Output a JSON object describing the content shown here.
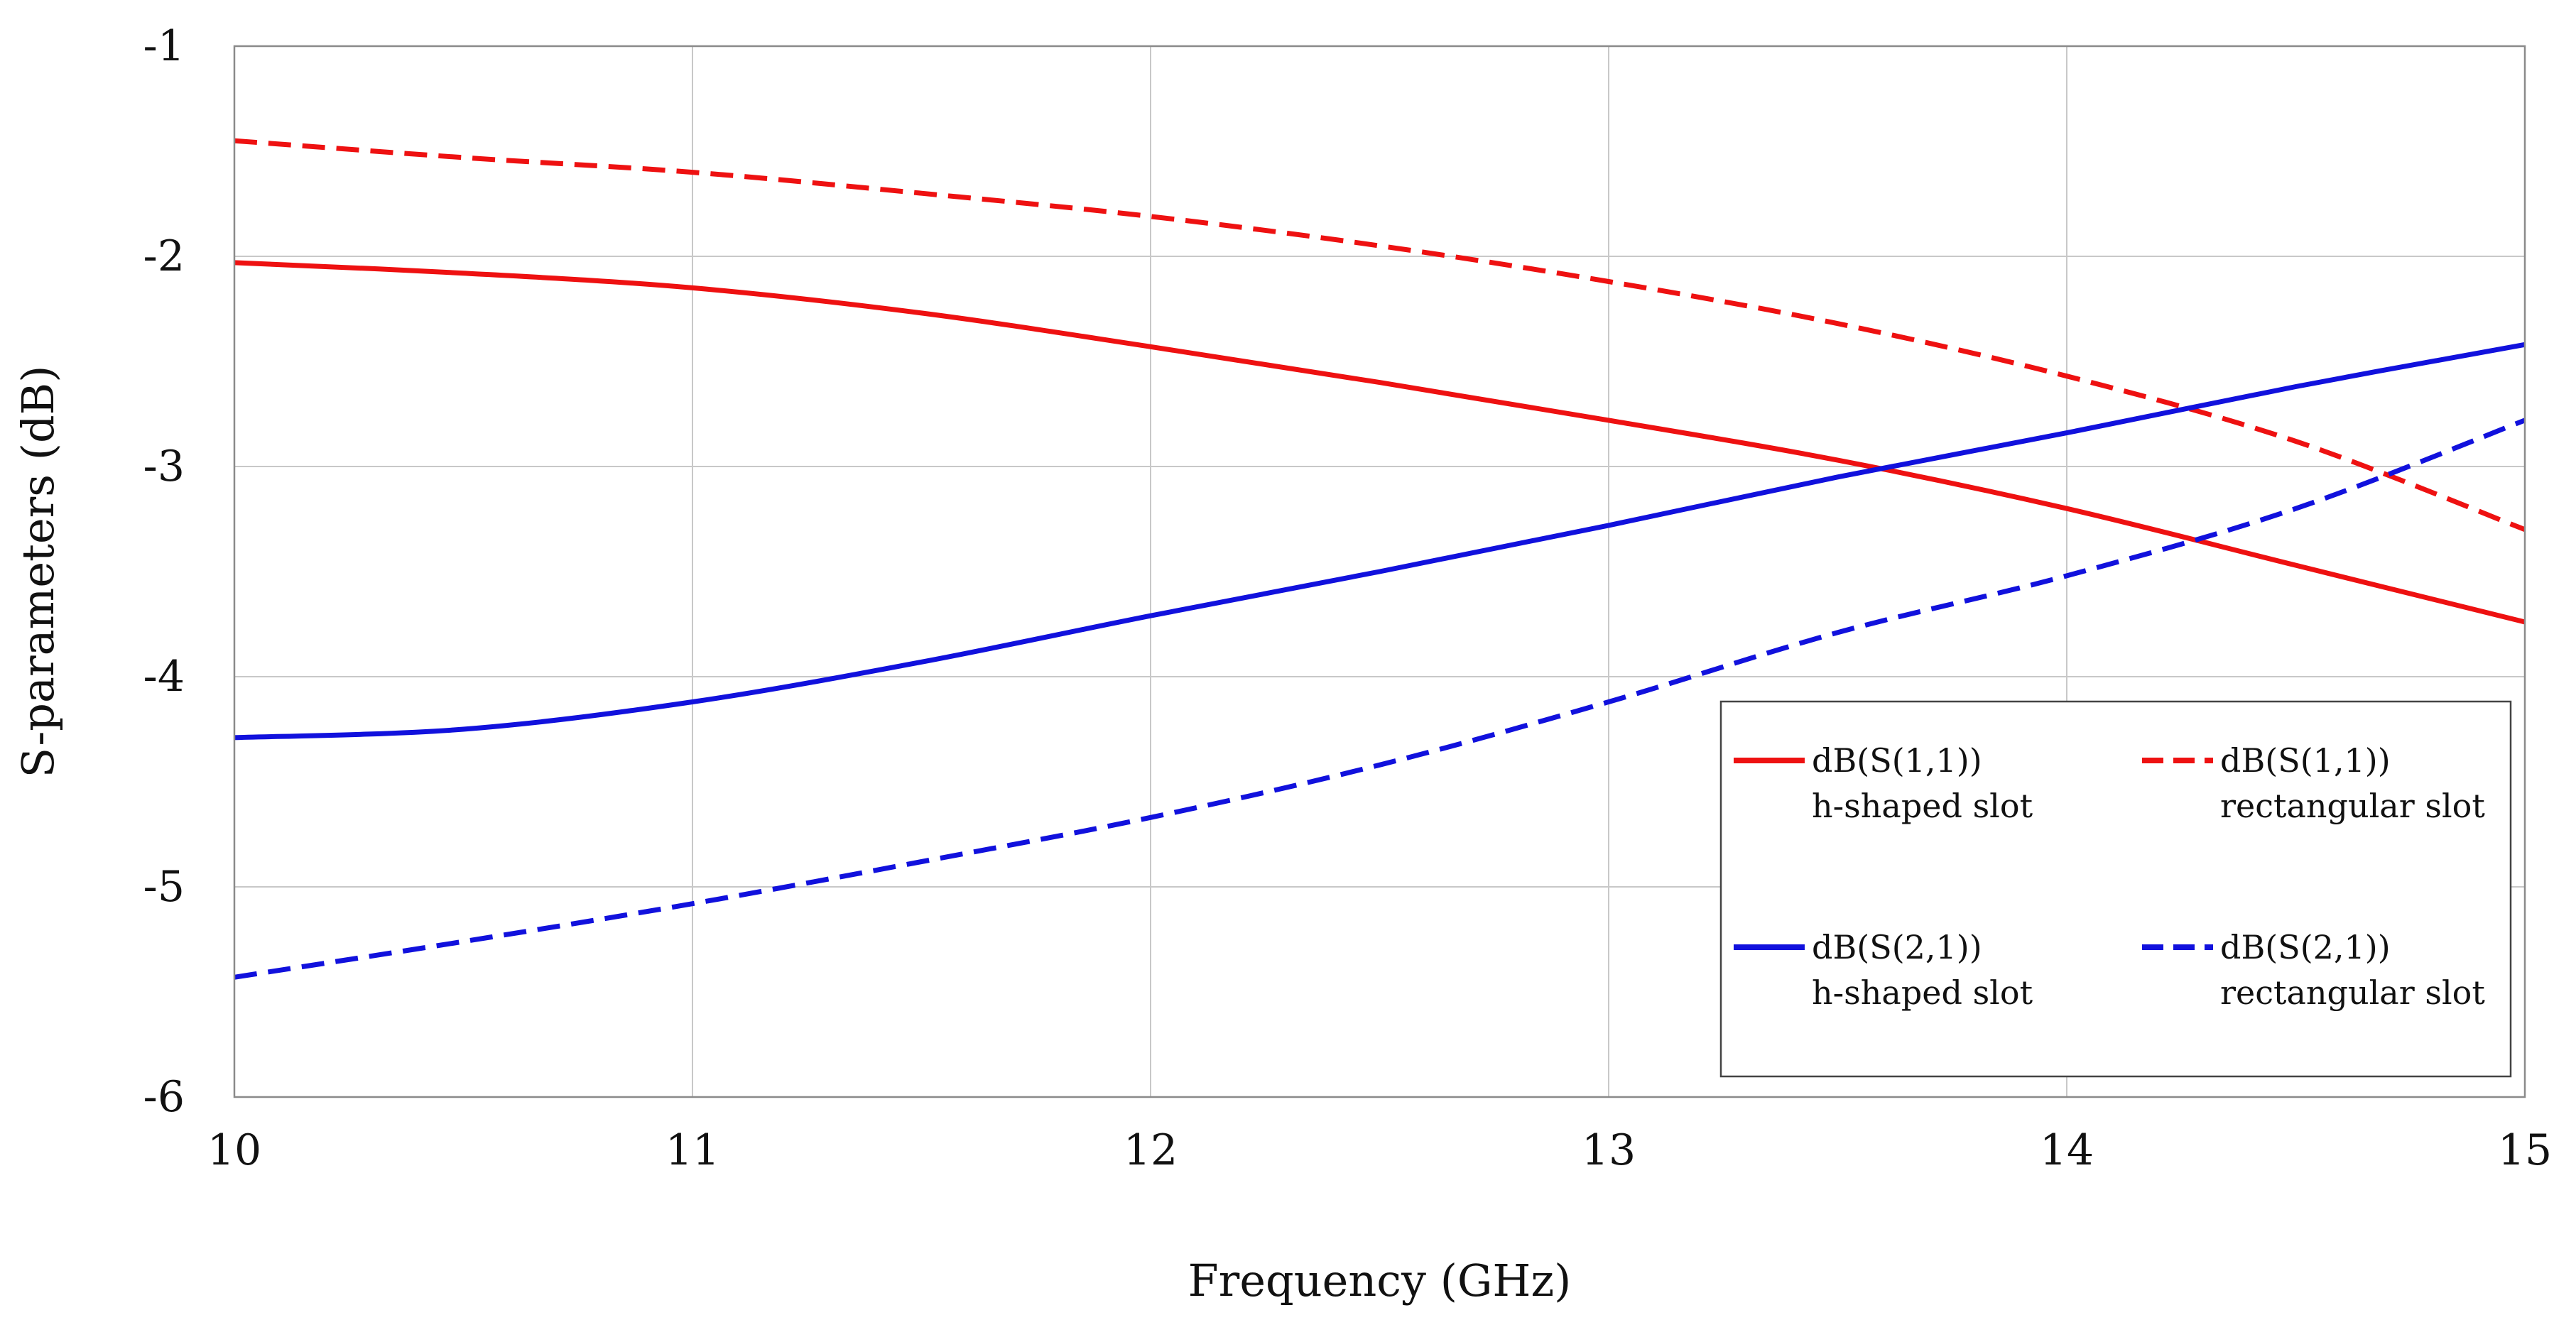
{
  "chart_data": {
    "type": "line",
    "title": "",
    "xlabel": "Frequency (GHz)",
    "ylabel": "S-parameters (dB)",
    "xlim": [
      10,
      15
    ],
    "ylim": [
      -6,
      -1
    ],
    "xticks": [
      "10",
      "11",
      "12",
      "13",
      "14",
      "15"
    ],
    "yticks": [
      "-1",
      "-2",
      "-3",
      "-4",
      "-5",
      "-6"
    ],
    "grid": true,
    "legend_position": "lower-right",
    "x": [
      10,
      10.5,
      11,
      11.5,
      12,
      12.5,
      13,
      13.5,
      14,
      14.5,
      15
    ],
    "series": [
      {
        "name": "dB(S(1,1))",
        "subtitle": "h-shaped slot",
        "color": "#ee1111",
        "dash": "solid",
        "values": [
          -2.03,
          -2.08,
          -2.15,
          -2.27,
          -2.43,
          -2.6,
          -2.78,
          -2.97,
          -3.2,
          -3.47,
          -3.74
        ]
      },
      {
        "name": "dB(S(1,1))",
        "subtitle": "rectangular slot",
        "color": "#ee1111",
        "dash": "dashed",
        "values": [
          -1.45,
          -1.53,
          -1.6,
          -1.7,
          -1.81,
          -1.95,
          -2.12,
          -2.32,
          -2.57,
          -2.88,
          -3.3
        ]
      },
      {
        "name": "dB(S(2,1))",
        "subtitle": "h-shaped slot",
        "color": "#1111dd",
        "dash": "solid",
        "values": [
          -4.29,
          -4.25,
          -4.12,
          -3.93,
          -3.71,
          -3.5,
          -3.28,
          -3.05,
          -2.84,
          -2.62,
          -2.42
        ]
      },
      {
        "name": "dB(S(2,1))",
        "subtitle": "rectangular slot",
        "color": "#1111dd",
        "dash": "dashed",
        "values": [
          -5.43,
          -5.26,
          -5.08,
          -4.88,
          -4.67,
          -4.42,
          -4.12,
          -3.79,
          -3.52,
          -3.2,
          -2.78
        ]
      }
    ]
  }
}
